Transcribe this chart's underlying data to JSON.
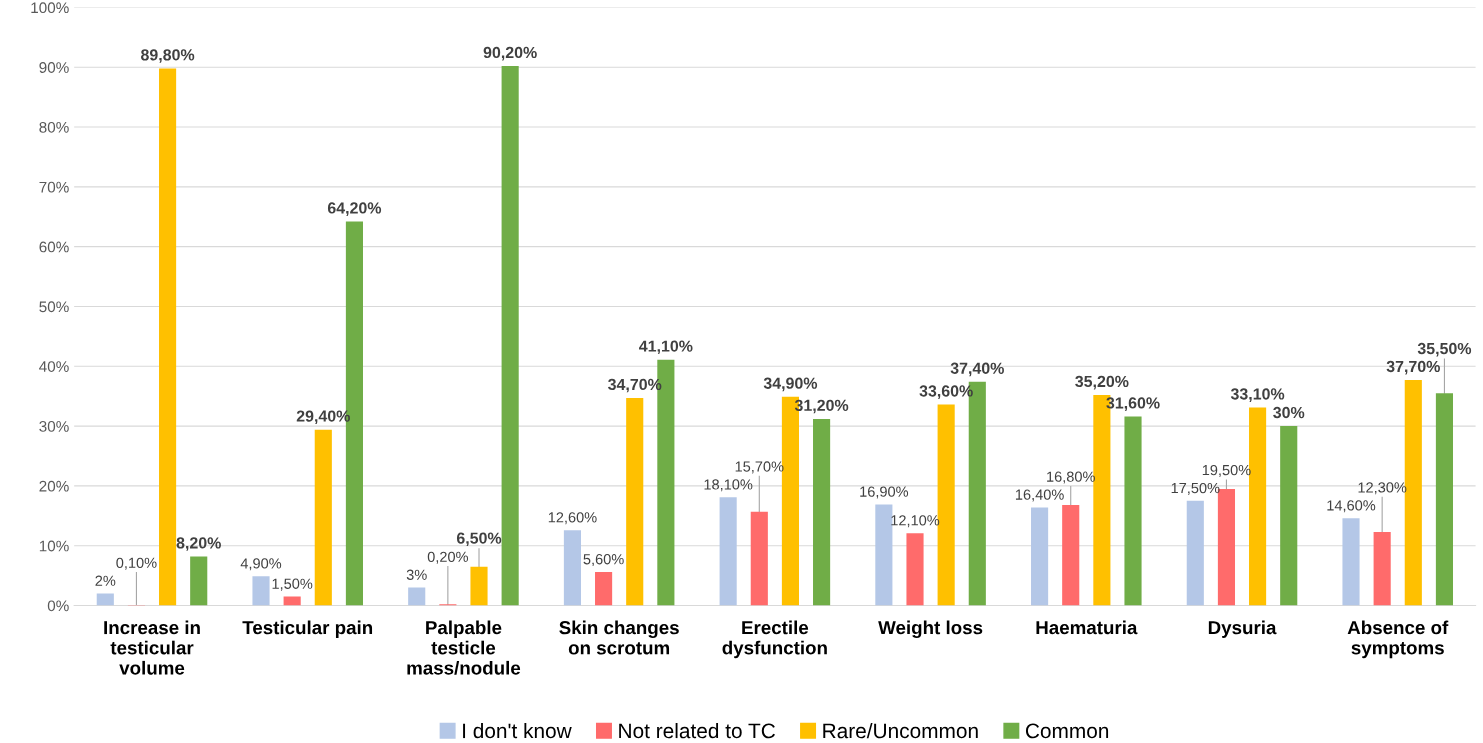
{
  "chart_data": {
    "type": "bar",
    "categories": [
      "Increase in testicular volume",
      "Testicular pain",
      "Palpable testicle mass/nodule",
      "Skin changes on scrotum",
      "Erectile dysfunction",
      "Weight loss",
      "Haematuria",
      "Dysuria",
      "Absence of symptoms"
    ],
    "series": [
      {
        "name": "I don't know",
        "color": "#b4c7e7",
        "values": [
          2,
          4.9,
          3,
          12.6,
          18.1,
          16.9,
          16.4,
          17.5,
          14.6
        ],
        "value_labels": [
          "2%",
          "4,90%",
          "3%",
          "12,60%",
          "18,10%",
          "16,90%",
          "16,40%",
          "17,50%",
          "14,60%"
        ]
      },
      {
        "name": "Not related to TC",
        "color": "#ff6b6b",
        "values": [
          0.1,
          1.5,
          0.2,
          5.6,
          15.7,
          12.1,
          16.8,
          19.5,
          12.3
        ],
        "value_labels": [
          "0,10%",
          "1,50%",
          "0,20%",
          "5,60%",
          "15,70%",
          "12,10%",
          "16,80%",
          "19,50%",
          "12,30%"
        ]
      },
      {
        "name": "Rare/Uncommon",
        "color": "#ffc000",
        "values": [
          89.8,
          29.4,
          6.5,
          34.7,
          34.9,
          33.6,
          35.2,
          33.1,
          37.7
        ],
        "value_labels": [
          "89,80%",
          "29,40%",
          "6,50%",
          "34,70%",
          "34,90%",
          "33,60%",
          "35,20%",
          "33,10%",
          "37,70%"
        ]
      },
      {
        "name": "Common",
        "color": "#70ad47",
        "values": [
          8.2,
          64.2,
          90.2,
          41.1,
          31.2,
          37.4,
          31.6,
          30,
          35.5
        ],
        "value_labels": [
          "8,20%",
          "64,20%",
          "90,20%",
          "41,10%",
          "31,20%",
          "37,40%",
          "31,60%",
          "30%",
          "35,50%"
        ]
      }
    ],
    "ylim": [
      0,
      100
    ],
    "yticks": [
      {
        "value": 0,
        "label": "0%"
      },
      {
        "value": 10,
        "label": "10%"
      },
      {
        "value": 20,
        "label": "20%"
      },
      {
        "value": 30,
        "label": "30%"
      },
      {
        "value": 40,
        "label": "40%"
      },
      {
        "value": 50,
        "label": "50%"
      },
      {
        "value": 60,
        "label": "60%"
      },
      {
        "value": 70,
        "label": "70%"
      },
      {
        "value": 80,
        "label": "80%"
      },
      {
        "value": 90,
        "label": "90%"
      },
      {
        "value": 100,
        "label": "100%"
      }
    ],
    "grid": "y",
    "legend": "bottom"
  }
}
